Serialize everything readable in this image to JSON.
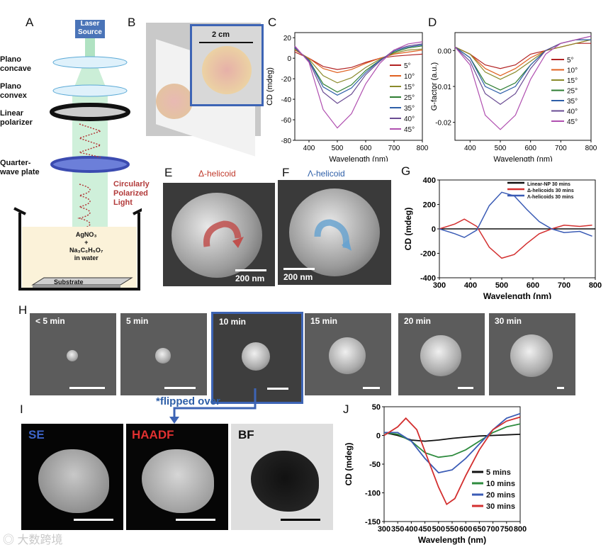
{
  "panels": {
    "A": "A",
    "B": "B",
    "C": "C",
    "D": "D",
    "E": "E",
    "F": "F",
    "G": "G",
    "H": "H",
    "I": "I",
    "J": "J"
  },
  "setup": {
    "laser": "Laser\nSource",
    "plano_concave": "Plano\nconcave",
    "plano_convex": "Plano\nconvex",
    "linear_polarizer": "Linear\npolarizer",
    "quarter_wave": "Quarter-\nwave plate",
    "circular": "Circularly\nPolarized\nLight",
    "solution_line1": "AgNO₃",
    "solution_line2": "+",
    "solution_line3": "Na₃C₆H₅O₇",
    "solution_line4": "in water",
    "substrate": "Substrate"
  },
  "photo": {
    "scale": "2 cm"
  },
  "sem_e": {
    "title": "Δ-helicoid",
    "scale": "200 nm",
    "title_color": "#c0392b"
  },
  "sem_f": {
    "title": "Λ-helicoid",
    "scale": "200 nm",
    "title_color": "#2e5fa8"
  },
  "timeline": {
    "frames": [
      "< 5 min",
      "5 min",
      "10 min",
      "15 min",
      "20 min",
      "30 min"
    ],
    "flipped": "*flipped over"
  },
  "tem": {
    "se": "SE",
    "haadf": "HAADF",
    "bf": "BF"
  },
  "watermark": "大数跨境",
  "chart_data": [
    {
      "type": "line",
      "id": "C",
      "xlabel": "Wavelength (nm)",
      "ylabel": "CD (mdeg)",
      "xlim": [
        350,
        800
      ],
      "ylim": [
        -80,
        25
      ],
      "xticks": [
        400,
        500,
        600,
        700,
        800
      ],
      "yticks": [
        20,
        0,
        -20,
        -40,
        -60,
        -80
      ],
      "legend": "right",
      "series": [
        {
          "name": "5°",
          "color": "#b22222",
          "x": [
            350,
            400,
            450,
            500,
            550,
            600,
            650,
            700,
            750,
            800
          ],
          "y": [
            6,
            0,
            -8,
            -11,
            -9,
            -4,
            0,
            2,
            3,
            4
          ]
        },
        {
          "name": "10°",
          "color": "#e06020",
          "x": [
            350,
            400,
            450,
            500,
            550,
            600,
            650,
            700,
            750,
            800
          ],
          "y": [
            8,
            0,
            -10,
            -14,
            -11,
            -5,
            0,
            4,
            6,
            8
          ]
        },
        {
          "name": "15°",
          "color": "#8a8a2a",
          "x": [
            350,
            400,
            450,
            500,
            550,
            600,
            650,
            700,
            750,
            800
          ],
          "y": [
            9,
            -1,
            -17,
            -24,
            -19,
            -9,
            -1,
            5,
            8,
            9
          ]
        },
        {
          "name": "25°",
          "color": "#2e7d32",
          "x": [
            350,
            400,
            450,
            500,
            550,
            600,
            650,
            700,
            750,
            800
          ],
          "y": [
            10,
            -2,
            -25,
            -33,
            -26,
            -12,
            -2,
            6,
            10,
            12
          ]
        },
        {
          "name": "35°",
          "color": "#2e5fa8",
          "x": [
            350,
            400,
            450,
            500,
            550,
            600,
            650,
            700,
            750,
            800
          ],
          "y": [
            10,
            -2,
            -28,
            -36,
            -29,
            -14,
            -2,
            7,
            11,
            13
          ]
        },
        {
          "name": "40°",
          "color": "#6a4c93",
          "x": [
            350,
            400,
            450,
            500,
            550,
            600,
            650,
            700,
            750,
            800
          ],
          "y": [
            11,
            -3,
            -33,
            -44,
            -35,
            -16,
            -3,
            8,
            12,
            14
          ]
        },
        {
          "name": "45°",
          "color": "#b04fb0",
          "x": [
            350,
            400,
            450,
            500,
            550,
            600,
            650,
            700,
            750,
            800
          ],
          "y": [
            12,
            -4,
            -50,
            -68,
            -54,
            -25,
            -5,
            8,
            14,
            16
          ]
        }
      ]
    },
    {
      "type": "line",
      "id": "D",
      "xlabel": "Wavelength (nm)",
      "ylabel": "G-factor (a.u.)",
      "xlim": [
        350,
        800
      ],
      "ylim": [
        -0.025,
        0.005
      ],
      "xticks": [
        400,
        500,
        600,
        700,
        800
      ],
      "yticks": [
        0.0,
        -0.01,
        -0.02
      ],
      "legend": "right",
      "series": [
        {
          "name": "5°",
          "color": "#b22222",
          "x": [
            350,
            400,
            450,
            500,
            550,
            600,
            650,
            700,
            750,
            800
          ],
          "y": [
            0.001,
            -0.001,
            -0.004,
            -0.005,
            -0.004,
            -0.001,
            0.0,
            0.001,
            0.002,
            0.002
          ]
        },
        {
          "name": "10°",
          "color": "#e06020",
          "x": [
            350,
            400,
            450,
            500,
            550,
            600,
            650,
            700,
            750,
            800
          ],
          "y": [
            0.001,
            -0.001,
            -0.005,
            -0.007,
            -0.005,
            -0.002,
            0.0,
            0.001,
            0.002,
            0.003
          ]
        },
        {
          "name": "15°",
          "color": "#8a8a2a",
          "x": [
            350,
            400,
            450,
            500,
            550,
            600,
            650,
            700,
            750,
            800
          ],
          "y": [
            0.001,
            -0.001,
            -0.006,
            -0.008,
            -0.006,
            -0.003,
            0.0,
            0.001,
            0.002,
            0.003
          ]
        },
        {
          "name": "25°",
          "color": "#2e7d32",
          "x": [
            350,
            400,
            450,
            500,
            550,
            600,
            650,
            700,
            750,
            800
          ],
          "y": [
            0.001,
            -0.002,
            -0.009,
            -0.011,
            -0.009,
            -0.004,
            0.0,
            0.002,
            0.003,
            0.003
          ]
        },
        {
          "name": "35°",
          "color": "#2e5fa8",
          "x": [
            350,
            400,
            450,
            500,
            550,
            600,
            650,
            700,
            750,
            800
          ],
          "y": [
            0.001,
            -0.002,
            -0.01,
            -0.012,
            -0.01,
            -0.004,
            0.0,
            0.002,
            0.003,
            0.003
          ]
        },
        {
          "name": "40°",
          "color": "#6a4c93",
          "x": [
            350,
            400,
            450,
            500,
            550,
            600,
            650,
            700,
            750,
            800
          ],
          "y": [
            0.001,
            -0.003,
            -0.012,
            -0.015,
            -0.012,
            -0.005,
            0.0,
            0.002,
            0.003,
            0.004
          ]
        },
        {
          "name": "45°",
          "color": "#b04fb0",
          "x": [
            350,
            400,
            450,
            500,
            550,
            600,
            650,
            700,
            750,
            800
          ],
          "y": [
            0.001,
            -0.004,
            -0.018,
            -0.022,
            -0.018,
            -0.008,
            -0.001,
            0.002,
            0.003,
            0.004
          ]
        }
      ]
    },
    {
      "type": "line",
      "id": "G",
      "xlabel": "Wavelength (nm)",
      "ylabel": "CD (mdeg)",
      "xlim": [
        300,
        800
      ],
      "ylim": [
        -400,
        400
      ],
      "xticks": [
        300,
        400,
        500,
        600,
        700,
        800
      ],
      "yticks": [
        400,
        200,
        0,
        -200,
        -400
      ],
      "legend": "top-right",
      "series": [
        {
          "name": "Linear-NP 30 mins",
          "color": "#111111",
          "x": [
            300,
            400,
            500,
            600,
            700,
            800
          ],
          "y": [
            0,
            0,
            0,
            0,
            0,
            0
          ]
        },
        {
          "name": "Δ-helicoids 30 mins",
          "color": "#d32f2f",
          "x": [
            300,
            350,
            380,
            420,
            460,
            500,
            540,
            580,
            620,
            660,
            700,
            750,
            790
          ],
          "y": [
            0,
            40,
            80,
            20,
            -150,
            -240,
            -210,
            -120,
            -40,
            0,
            30,
            20,
            30
          ]
        },
        {
          "name": "Λ-helicoids 30 mins",
          "color": "#3a5bb5",
          "x": [
            300,
            350,
            380,
            420,
            460,
            500,
            540,
            580,
            620,
            660,
            700,
            750,
            790
          ],
          "y": [
            0,
            -40,
            -70,
            -10,
            190,
            300,
            270,
            160,
            60,
            0,
            -30,
            -20,
            -60
          ]
        }
      ]
    },
    {
      "type": "line",
      "id": "J",
      "xlabel": "Wavelength (nm)",
      "ylabel": "CD (mdeg)",
      "xlim": [
        300,
        800
      ],
      "ylim": [
        -150,
        50
      ],
      "xticks": [
        300,
        350,
        400,
        450,
        500,
        550,
        600,
        650,
        700,
        750,
        800
      ],
      "yticks": [
        50,
        0,
        -50,
        -100,
        -150
      ],
      "legend": "bottom-right",
      "series": [
        {
          "name": "5 mins",
          "color": "#111111",
          "x": [
            300,
            350,
            400,
            450,
            500,
            550,
            600,
            650,
            700,
            750,
            800
          ],
          "y": [
            5,
            0,
            -8,
            -10,
            -8,
            -5,
            -3,
            -1,
            0,
            1,
            2
          ]
        },
        {
          "name": "10 mins",
          "color": "#2e8b3e",
          "x": [
            300,
            350,
            400,
            450,
            500,
            550,
            600,
            650,
            700,
            750,
            800
          ],
          "y": [
            5,
            2,
            -10,
            -30,
            -38,
            -35,
            -25,
            -10,
            5,
            15,
            20
          ]
        },
        {
          "name": "20 mins",
          "color": "#3a5bb5",
          "x": [
            300,
            350,
            400,
            450,
            500,
            550,
            600,
            650,
            700,
            750,
            800
          ],
          "y": [
            5,
            5,
            -10,
            -40,
            -65,
            -60,
            -40,
            -15,
            10,
            30,
            38
          ]
        },
        {
          "name": "30 mins",
          "color": "#d32f2f",
          "x": [
            300,
            350,
            380,
            420,
            460,
            500,
            530,
            560,
            600,
            650,
            700,
            750,
            800
          ],
          "y": [
            0,
            15,
            30,
            10,
            -40,
            -90,
            -120,
            -110,
            -70,
            -25,
            10,
            25,
            32
          ]
        }
      ]
    }
  ]
}
